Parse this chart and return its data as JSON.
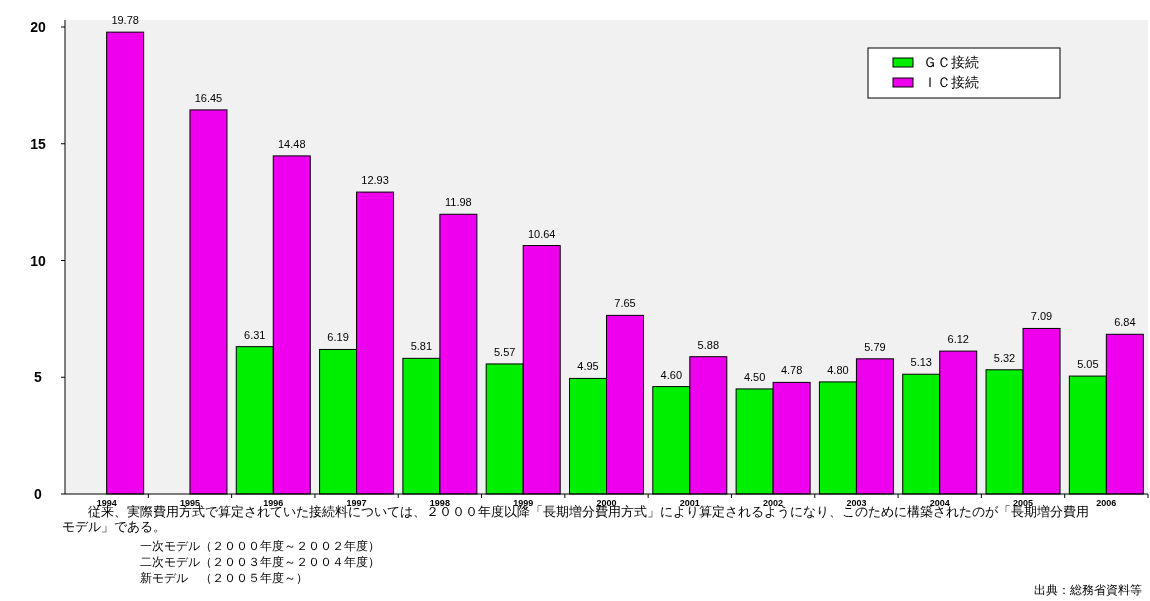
{
  "chart_data": {
    "type": "bar",
    "categories": [
      "1994",
      "1995",
      "1996",
      "1997",
      "1998",
      "1999",
      "2000",
      "2001",
      "2002",
      "2003",
      "2004",
      "2005",
      "2006"
    ],
    "series": [
      {
        "name": "ＧＣ接続",
        "color": "#00ee00",
        "values": [
          null,
          null,
          6.31,
          6.19,
          5.81,
          5.57,
          4.95,
          4.6,
          4.5,
          4.8,
          5.13,
          5.32,
          5.05
        ],
        "value_labels": [
          null,
          null,
          "6.31",
          "6.19",
          "5.81",
          "5.57",
          "4.95",
          "4.60",
          "4.50",
          "4.80",
          "5.13",
          "5.32",
          "5.05"
        ]
      },
      {
        "name": "ＩＣ接続",
        "color": "#ee00ee",
        "values": [
          19.78,
          16.45,
          14.48,
          12.93,
          11.98,
          10.64,
          7.65,
          5.88,
          4.78,
          5.79,
          6.12,
          7.09,
          6.84
        ],
        "value_labels": [
          "19.78",
          "16.45",
          "14.48",
          "12.93",
          "11.98",
          "10.64",
          "7.65",
          "5.88",
          "4.78",
          "5.79",
          "6.12",
          "7.09",
          "6.84"
        ]
      }
    ],
    "ylim": [
      0,
      20.3
    ],
    "yticks": [
      0,
      5,
      10,
      15,
      20
    ],
    "grid": false,
    "legend": "top right",
    "annotations": [
      "従来、実際費用方式で算定されていた接続料については、２０００年度以降「長期増分費用方式」により算定されるようになり、このために構築されたのが「長期増分費用モデル」である。",
      "一次モデル（２０００年度～２００２年度）",
      "二次モデル（２００３年度～２００４年度）",
      "新モデル　（２００５年度～）",
      "出典：総務省資料等"
    ]
  }
}
